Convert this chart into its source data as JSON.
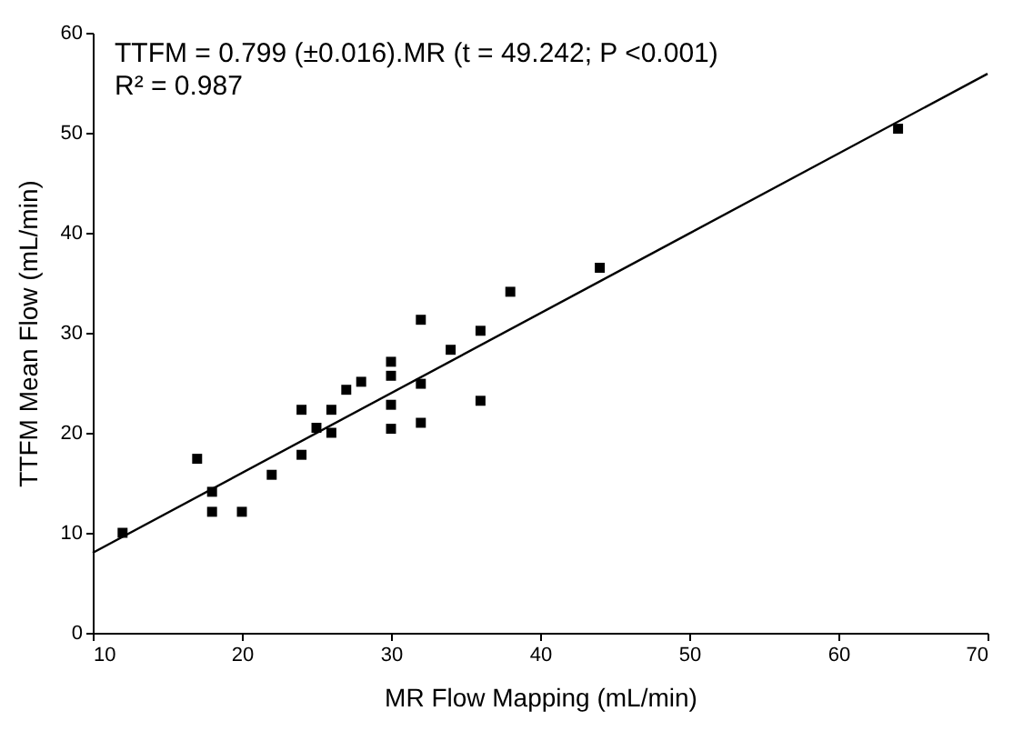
{
  "chart_data": {
    "type": "scatter",
    "xlabel": "MR Flow Mapping (mL/min)",
    "ylabel": "TTFM Mean Flow (mL/min)",
    "annotations": [
      "TTFM = 0.799 (±0.016).MR (t = 49.242; P <0.001)",
      "R² = 0.987"
    ],
    "xlim": [
      10,
      70
    ],
    "ylim": [
      0,
      60
    ],
    "xticks": [
      10,
      20,
      30,
      40,
      50,
      60,
      70
    ],
    "yticks": [
      0,
      10,
      20,
      30,
      40,
      50,
      60
    ],
    "grid": false,
    "legend": false,
    "series": [
      {
        "marker": "square",
        "color": "#000000",
        "x": [
          12,
          17,
          18,
          18,
          20,
          22,
          24,
          24,
          25,
          26,
          26,
          27,
          28,
          30,
          30,
          30,
          30,
          32,
          32,
          32,
          34,
          36,
          36,
          38,
          44,
          64
        ],
        "values": [
          10,
          17.4,
          14.1,
          12.1,
          12.1,
          15.8,
          22.3,
          17.8,
          20.5,
          22.3,
          20,
          24.3,
          25.1,
          27.1,
          25.7,
          22.8,
          20.4,
          31.3,
          24.9,
          21,
          28.3,
          30.2,
          23.2,
          34.1,
          36.5,
          50.4
        ]
      },
      {
        "type": "line",
        "color": "#000000",
        "line_style": "solid",
        "x": [
          10,
          70
        ],
        "values": [
          8.0,
          55.9
        ]
      }
    ]
  }
}
